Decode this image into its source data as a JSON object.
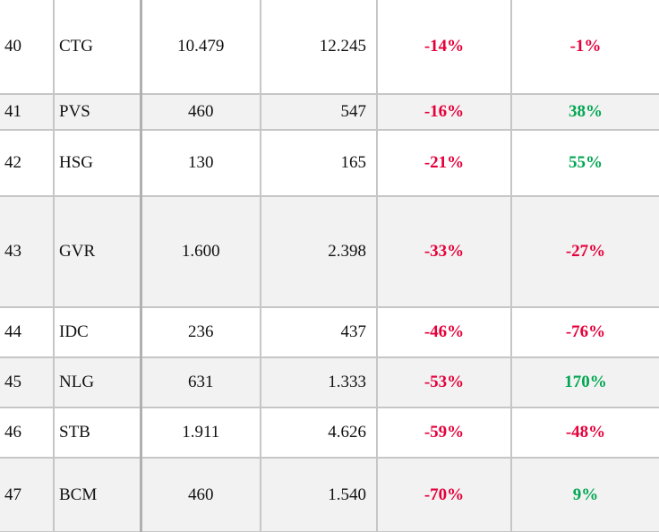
{
  "table": {
    "rows": [
      [
        "40",
        "CTG",
        "10.479",
        "12.245",
        "-14%",
        "-1%"
      ],
      [
        "41",
        "PVS",
        "460",
        "547",
        "-16%",
        "38%"
      ],
      [
        "42",
        "HSG",
        "130",
        "165",
        "-21%",
        "55%"
      ],
      [
        "43",
        "GVR",
        "1.600",
        "2.398",
        "-33%",
        "-27%"
      ],
      [
        "44",
        "IDC",
        "236",
        "437",
        "-46%",
        "-76%"
      ],
      [
        "45",
        "NLG",
        "631",
        "1.333",
        "-53%",
        "170%"
      ],
      [
        "46",
        "STB",
        "1.911",
        "4.626",
        "-59%",
        "-48%"
      ],
      [
        "47",
        "BCM",
        "460",
        "1.540",
        "-70%",
        "9%"
      ]
    ]
  }
}
